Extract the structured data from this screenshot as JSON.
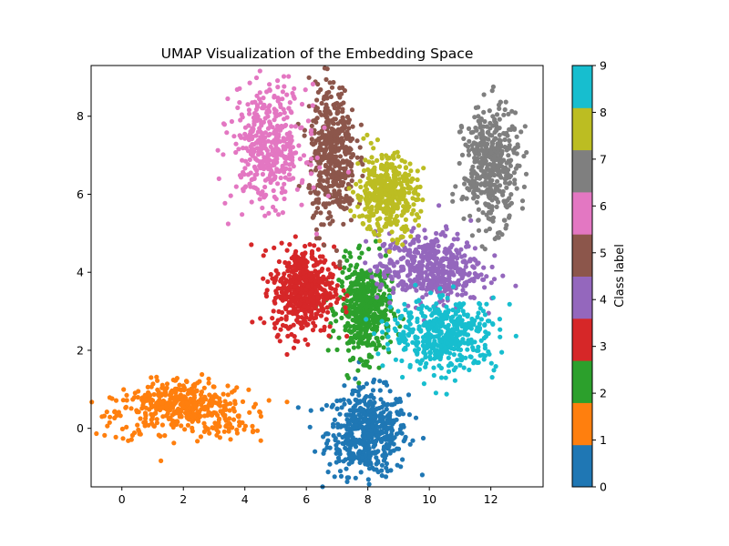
{
  "chart_data": {
    "type": "scatter",
    "title": "UMAP Visualization of the Embedding Space",
    "xlabel": "",
    "ylabel": "",
    "xlim": [
      -1.0,
      13.7
    ],
    "ylim": [
      -1.5,
      9.3
    ],
    "x_ticks": [
      0,
      2,
      4,
      6,
      8,
      10,
      12
    ],
    "y_ticks": [
      0,
      2,
      4,
      6,
      8
    ],
    "grid": false,
    "colorbar": {
      "label": "Class label",
      "ticks": [
        "0",
        "1",
        "2",
        "3",
        "4",
        "5",
        "6",
        "7",
        "8",
        "9"
      ],
      "colors": [
        "#1f77b4",
        "#ff7f0e",
        "#2ca02c",
        "#d62728",
        "#9467bd",
        "#8c564b",
        "#e377c2",
        "#7f7f7f",
        "#bcbd22",
        "#17becf"
      ]
    },
    "clusters": [
      {
        "label": 0,
        "cx": 8.0,
        "cy": -0.1,
        "sx": 0.65,
        "sy": 0.55,
        "n": 520
      },
      {
        "label": 1,
        "cx": 1.9,
        "cy": 0.45,
        "sx": 1.1,
        "sy": 0.35,
        "n": 460
      },
      {
        "label": 2,
        "cx": 7.9,
        "cy": 3.05,
        "sx": 0.42,
        "sy": 0.6,
        "n": 480
      },
      {
        "label": 3,
        "cx": 5.9,
        "cy": 3.55,
        "sx": 0.5,
        "sy": 0.55,
        "n": 520
      },
      {
        "label": 4,
        "cx": 10.0,
        "cy": 4.1,
        "sx": 0.85,
        "sy": 0.45,
        "n": 470
      },
      {
        "label": 5,
        "cx": 6.85,
        "cy": 7.0,
        "sx": 0.38,
        "sy": 0.9,
        "n": 460
      },
      {
        "label": 6,
        "cx": 4.8,
        "cy": 7.25,
        "sx": 0.6,
        "sy": 0.75,
        "n": 430
      },
      {
        "label": 7,
        "cx": 12.0,
        "cy": 6.7,
        "sx": 0.45,
        "sy": 0.75,
        "n": 430
      },
      {
        "label": 8,
        "cx": 8.6,
        "cy": 6.0,
        "sx": 0.5,
        "sy": 0.5,
        "n": 430
      },
      {
        "label": 9,
        "cx": 10.5,
        "cy": 2.4,
        "sx": 0.85,
        "sy": 0.45,
        "n": 470
      }
    ]
  }
}
